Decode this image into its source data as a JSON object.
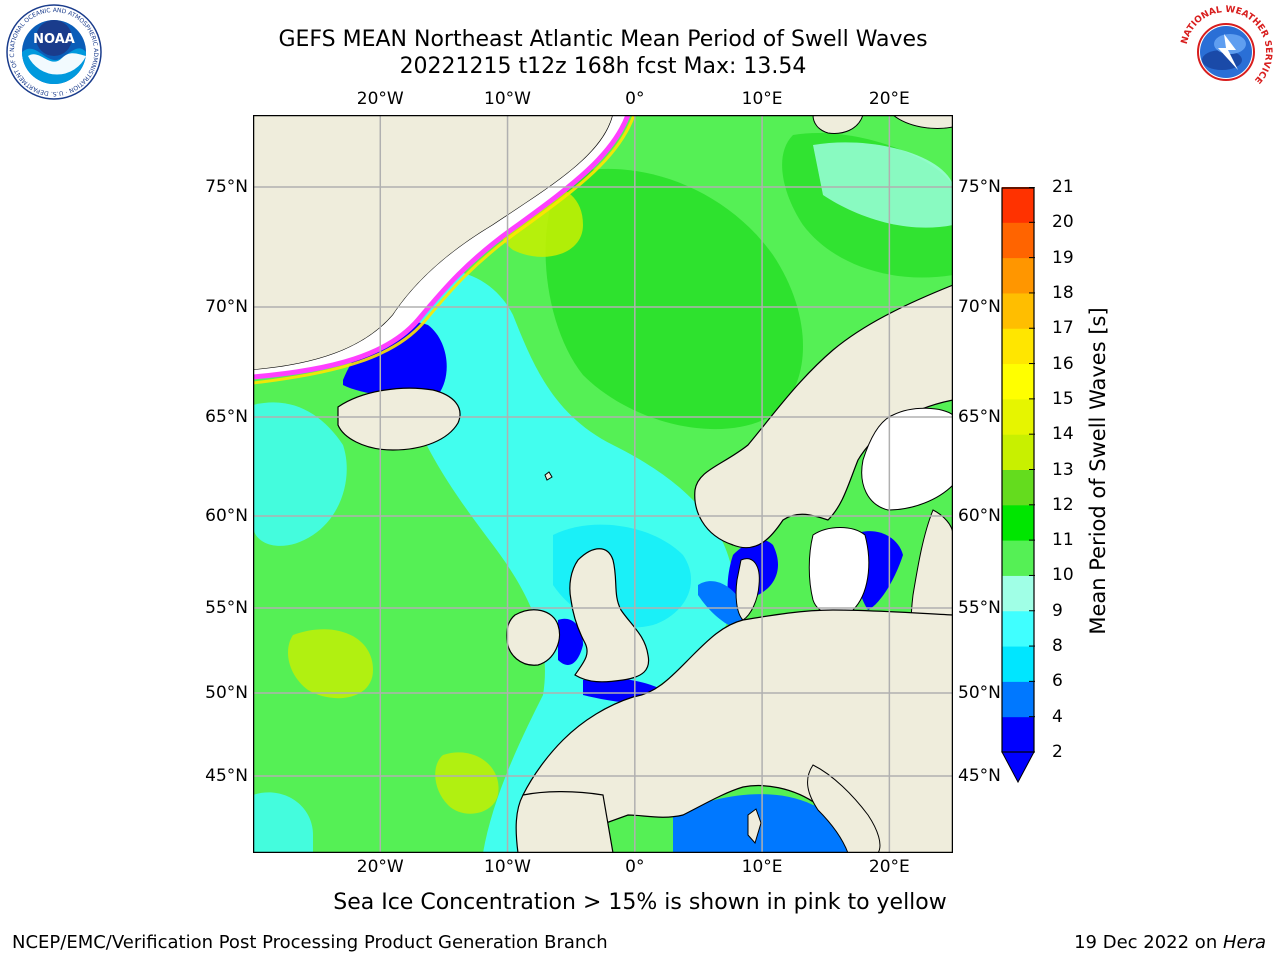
{
  "title": {
    "line1": "GEFS MEAN Northeast Atlantic Mean Period of Swell Waves",
    "line2": "20221215 t12z 168h fcst   Max: 13.54"
  },
  "logos": {
    "noaa": {
      "text": "NOAA",
      "ring_text": "NATIONAL OCEANIC AND ATMOSPHERIC ADMINISTRATION · U.S. DEPARTMENT OF COMMERCE"
    },
    "nws": {
      "ring_text": "NATIONAL WEATHER SERVICE"
    }
  },
  "map": {
    "lon_range": [
      -30,
      25
    ],
    "lat_range": [
      41,
      78
    ],
    "lon_ticks": [
      {
        "value": -20,
        "label": "20°W"
      },
      {
        "value": -10,
        "label": "10°W"
      },
      {
        "value": 0,
        "label": "0°"
      },
      {
        "value": 10,
        "label": "10°E"
      },
      {
        "value": 20,
        "label": "20°E"
      }
    ],
    "lat_ticks": [
      {
        "value": 45,
        "label": "45°N"
      },
      {
        "value": 50,
        "label": "50°N"
      },
      {
        "value": 55,
        "label": "55°N"
      },
      {
        "value": 60,
        "label": "60°N"
      },
      {
        "value": 65,
        "label": "65°N"
      },
      {
        "value": 70,
        "label": "70°N"
      },
      {
        "value": 75,
        "label": "75°N"
      }
    ],
    "colors": {
      "ocean_default": "#55f055",
      "land": "#efeddc",
      "sea_ice_edge": "#ff40ff",
      "ice_free_white": "#ffffff",
      "grid": "#b0b0b0"
    }
  },
  "colorbar": {
    "title": "Mean Period of Swell Waves [s]",
    "levels": [
      {
        "value": 2,
        "label": "2",
        "color": "#0000ff"
      },
      {
        "value": 4,
        "label": "4",
        "color": "#0078ff"
      },
      {
        "value": 6,
        "label": "6",
        "color": "#00e6ff"
      },
      {
        "value": 8,
        "label": "8",
        "color": "#40ffff"
      },
      {
        "value": 9,
        "label": "9",
        "color": "#a0ffe6"
      },
      {
        "value": 10,
        "label": "10",
        "color": "#55f055"
      },
      {
        "value": 11,
        "label": "11",
        "color": "#00e600"
      },
      {
        "value": 12,
        "label": "12",
        "color": "#64dc1e"
      },
      {
        "value": 13,
        "label": "13",
        "color": "#c8f000"
      },
      {
        "value": 14,
        "label": "14",
        "color": "#e6f500"
      },
      {
        "value": 15,
        "label": "15",
        "color": "#ffff00"
      },
      {
        "value": 16,
        "label": "16",
        "color": "#ffe600"
      },
      {
        "value": 17,
        "label": "17",
        "color": "#ffbe00"
      },
      {
        "value": 18,
        "label": "18",
        "color": "#ff9600"
      },
      {
        "value": 19,
        "label": "19",
        "color": "#ff6400"
      },
      {
        "value": 20,
        "label": "20",
        "color": "#ff3200"
      },
      {
        "value": 21,
        "label": "21",
        "color": "#ff0000"
      }
    ],
    "below_min_color": "#0000ff"
  },
  "caption": "Sea Ice Concentration > 15% is shown in pink to yellow",
  "footer": {
    "left": "NCEP/EMC/Verification Post Processing Product Generation Branch",
    "right_prefix": "19 Dec 2022 on ",
    "right_host": "Hera"
  }
}
